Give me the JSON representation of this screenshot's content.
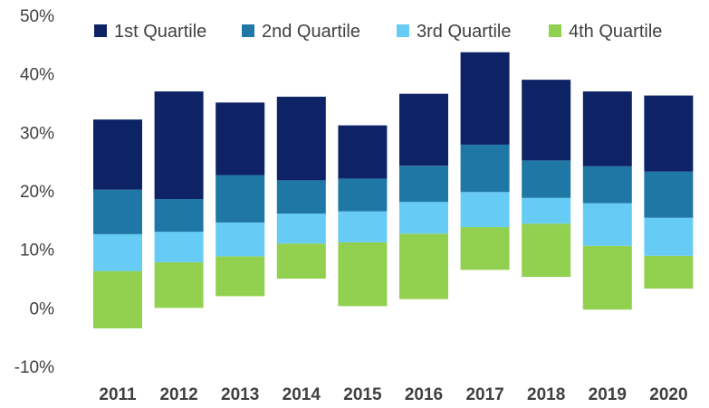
{
  "chart_data": {
    "type": "bar",
    "stacked": "floating-range",
    "categories": [
      "2011",
      "2012",
      "2013",
      "2014",
      "2015",
      "2016",
      "2017",
      "2018",
      "2019",
      "2020"
    ],
    "ylim": [
      -10,
      50
    ],
    "yticks": [
      -10,
      0,
      10,
      20,
      30,
      40,
      50
    ],
    "ytick_labels": [
      "-10%",
      "0%",
      "10%",
      "20%",
      "30%",
      "40%",
      "50%"
    ],
    "grid": false,
    "legend_position": "top",
    "series": [
      {
        "name": "4th Quartile",
        "color": "#92D050",
        "low": [
          -3.5,
          0,
          2,
          5,
          0.3,
          1.5,
          6.5,
          5.3,
          -0.3,
          3.3
        ],
        "high": [
          6.3,
          7.8,
          8.8,
          11,
          11.2,
          12.7,
          13.8,
          14.4,
          10.6,
          8.9
        ]
      },
      {
        "name": "3rd Quartile",
        "color": "#66CCF5",
        "low": [
          6.3,
          7.8,
          8.8,
          11,
          11.2,
          12.7,
          13.8,
          14.4,
          10.6,
          8.9
        ],
        "high": [
          12.6,
          13,
          14.6,
          16.1,
          16.5,
          18.1,
          19.8,
          18.8,
          17.9,
          15.4
        ]
      },
      {
        "name": "2nd Quartile",
        "color": "#1F77A5",
        "low": [
          12.6,
          13,
          14.6,
          16.1,
          16.5,
          18.1,
          19.8,
          18.8,
          17.9,
          15.4
        ],
        "high": [
          20.2,
          18.6,
          22.7,
          21.8,
          22.1,
          24.3,
          27.9,
          25.2,
          24.2,
          23.3
        ]
      },
      {
        "name": "1st Quartile",
        "color": "#0D2366",
        "low": [
          20.2,
          18.6,
          22.7,
          21.8,
          22.1,
          24.3,
          27.9,
          25.2,
          24.2,
          23.3
        ],
        "high": [
          32.2,
          37,
          35.1,
          36.1,
          31.2,
          36.6,
          43.7,
          39,
          37,
          36.3
        ]
      }
    ],
    "legend": [
      {
        "name": "1st Quartile",
        "color": "#0D2366"
      },
      {
        "name": "2nd Quartile",
        "color": "#1F77A5"
      },
      {
        "name": "3rd Quartile",
        "color": "#66CCF5"
      },
      {
        "name": "4th Quartile",
        "color": "#92D050"
      }
    ]
  }
}
